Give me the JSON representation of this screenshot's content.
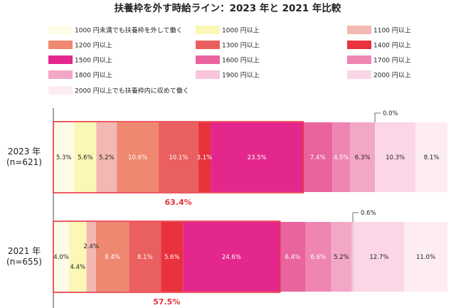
{
  "chart_data": {
    "type": "bar",
    "orientation": "horizontal",
    "stacked": "100%",
    "title": "扶養枠を外す時給ライン：2023 年と 2021 年比較",
    "series": [
      {
        "name": "1000 円未満でも扶養枠を外して働く",
        "color": "#fefce6",
        "values": [
          5.3,
          4.0
        ]
      },
      {
        "name": "1000 円以上",
        "color": "#fbf7b7",
        "values": [
          5.6,
          4.4
        ]
      },
      {
        "name": "1100 円以上",
        "color": "#f3b8b1",
        "values": [
          5.2,
          2.4
        ]
      },
      {
        "name": "1200 円以上",
        "color": "#ef8870",
        "values": [
          10.6,
          8.4
        ]
      },
      {
        "name": "1300 円以上",
        "color": "#ea5f5f",
        "values": [
          10.1,
          8.1
        ]
      },
      {
        "name": "1400 円以上",
        "color": "#e8323c",
        "values": [
          3.1,
          5.6
        ]
      },
      {
        "name": "1500 円以上",
        "color": "#e4278c",
        "values": [
          23.5,
          24.6
        ]
      },
      {
        "name": "1600 円以上",
        "color": "#e9639e",
        "values": [
          7.4,
          6.4
        ]
      },
      {
        "name": "1700 円以上",
        "color": "#ee85b2",
        "values": [
          4.5,
          6.6
        ]
      },
      {
        "name": "1800 円以上",
        "color": "#f3a7c6",
        "values": [
          6.3,
          5.2
        ]
      },
      {
        "name": "1900 円以上",
        "color": "#f8c4da",
        "values": [
          0.0,
          0.6
        ]
      },
      {
        "name": "2000 円以上",
        "color": "#fad6e6",
        "values": [
          10.3,
          12.7
        ]
      },
      {
        "name": "2000 円以上でも扶養枠内に収めて働く",
        "color": "#fdedf3",
        "values": [
          8.1,
          11.0
        ]
      }
    ],
    "bars": [
      {
        "label_line1": "2023 年",
        "label_line2": "(n=621)",
        "highlight_total": "63.4%",
        "callout": "0.0%"
      },
      {
        "label_line1": "2021 年",
        "label_line2": "(n=655)",
        "highlight_total": "57.5%",
        "callout": "0.6%"
      }
    ],
    "highlight_range": {
      "first_series": 0,
      "last_series": 6
    },
    "xlim": [
      0,
      100
    ]
  }
}
